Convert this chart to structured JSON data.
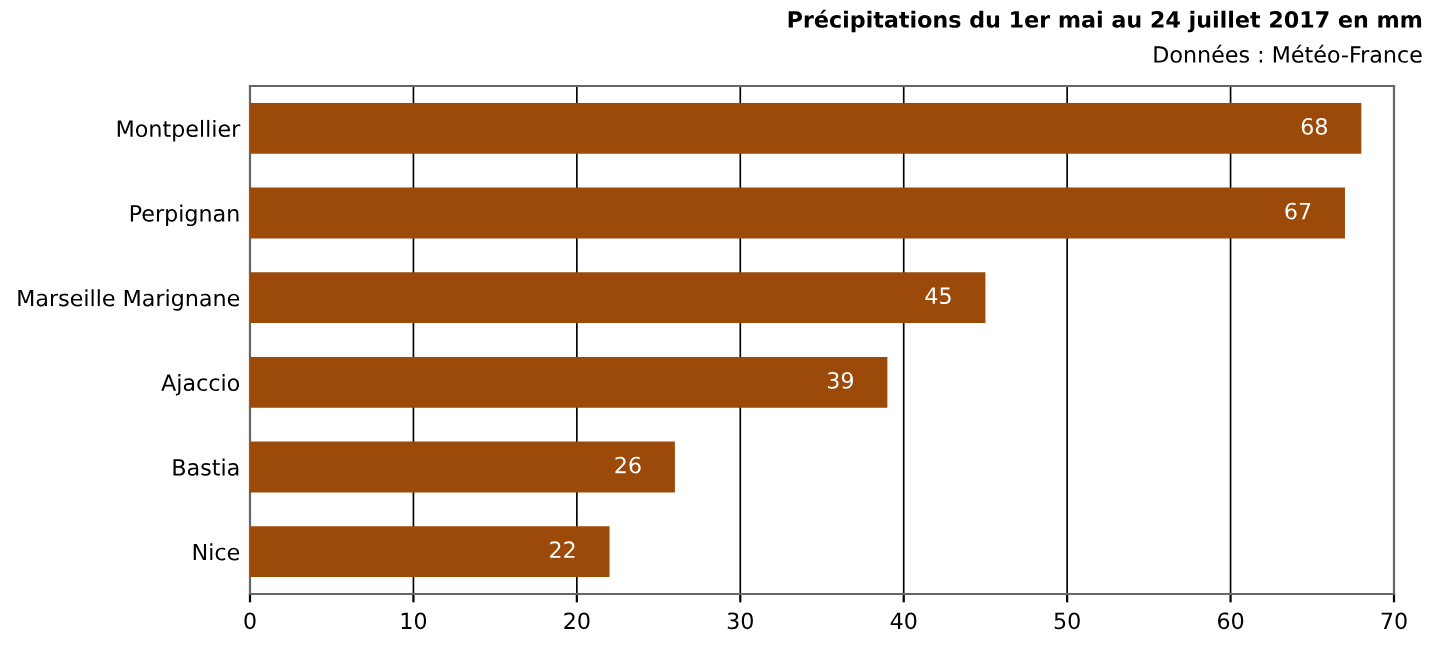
{
  "chart_data": {
    "type": "bar",
    "orientation": "horizontal",
    "title": "Précipitations du 1er mai au 24 juillet 2017 en mm",
    "subtitle": "Données : Météo-France",
    "categories": [
      "Montpellier",
      "Perpignan",
      "Marseille Marignane",
      "Ajaccio",
      "Bastia",
      "Nice"
    ],
    "values": [
      68,
      67,
      45,
      39,
      26,
      22
    ],
    "color": "#9c4a0a",
    "data_labels": true,
    "xlim": [
      0,
      70
    ],
    "xticks": [
      0,
      10,
      20,
      30,
      40,
      50,
      60,
      70
    ],
    "grid": "x",
    "legend": false
  }
}
